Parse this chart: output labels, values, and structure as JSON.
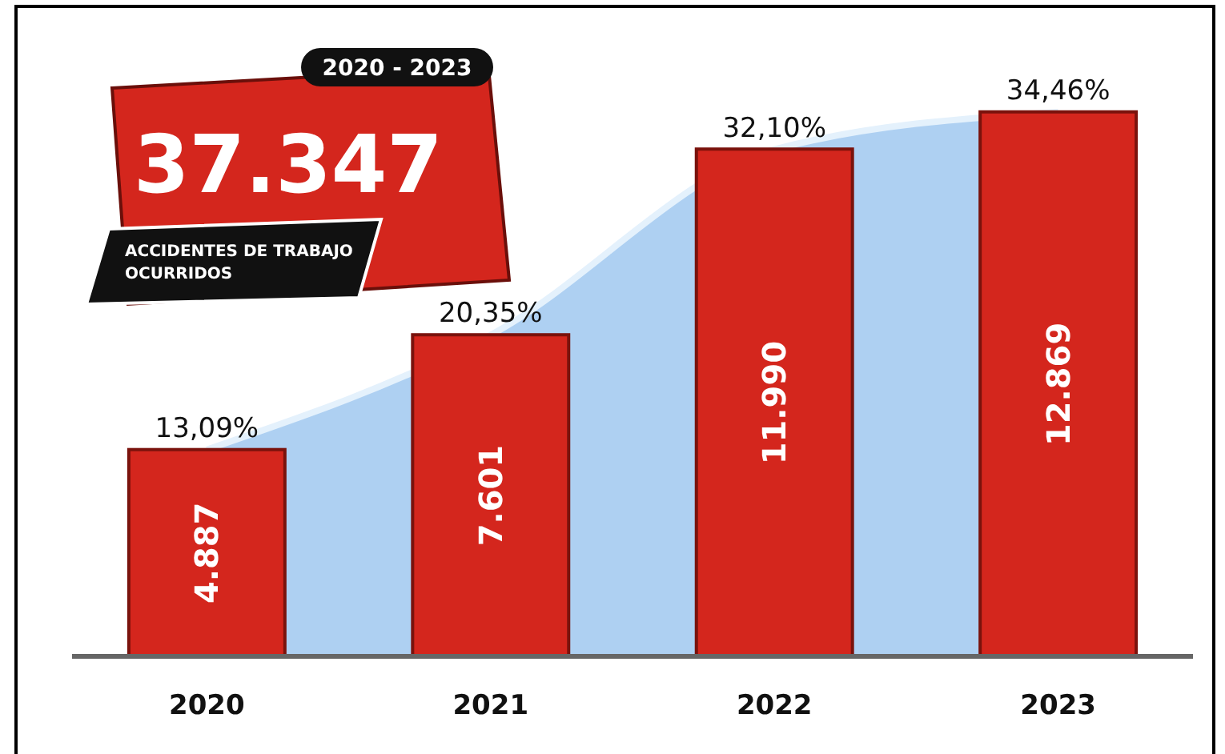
{
  "chart_data": {
    "type": "bar",
    "categories": [
      "2020",
      "2021",
      "2022",
      "2023"
    ],
    "series": [
      {
        "type": "area",
        "axis": "y2",
        "color": "#aed0f2",
        "values": [
          13.09,
          20.35,
          32.1,
          34.46
        ],
        "value_labels": [
          "13,09%",
          "20,35%",
          "32,10%",
          "34,46%"
        ]
      },
      {
        "color": "#d4261d",
        "values": [
          4887,
          7601,
          11990,
          12869
        ],
        "value_labels": [
          "4.887",
          "7.601",
          "11.990",
          "12.869"
        ]
      }
    ],
    "ylim": [
      0,
      14000
    ],
    "y2lim": [
      0,
      37.5
    ],
    "tick_labels": "x",
    "annotations": [
      "2020 - 2023",
      "37.347",
      "ACCIDENTES DE TRABAJO OCURRIDOS"
    ]
  }
}
